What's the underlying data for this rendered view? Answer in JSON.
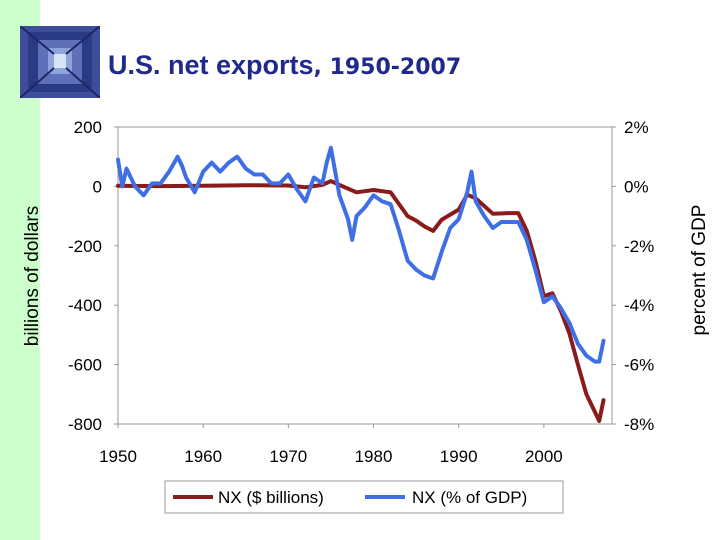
{
  "slide": {
    "title_main": "U.S. net exports",
    "title_rest": ", 1950-2007"
  },
  "colors": {
    "left_band": "#ccffcc",
    "title": "#1f2a8c",
    "nx_dollars": "#8b1a1a",
    "nx_percent": "#3f6fe6"
  },
  "icons": [
    "logo-icon"
  ],
  "chart_data": {
    "type": "line",
    "title": "U.S. net exports, 1950-2007",
    "xlabel": "",
    "ylabel_left": "billions of dollars",
    "ylabel_right": "percent of GDP",
    "xlim": [
      1950,
      2008
    ],
    "ylim_left": [
      -800,
      200
    ],
    "ylim_right": [
      -8,
      2
    ],
    "grid": false,
    "legend_position": "bottom",
    "x_ticks": [
      1950,
      1960,
      1970,
      1980,
      1990,
      2000
    ],
    "x_tick_labels": [
      "1950",
      "1960",
      "1970",
      "1980",
      "1990",
      "2000"
    ],
    "y_left_ticks": [
      200,
      0,
      -200,
      -400,
      -600,
      -800
    ],
    "y_left_tick_labels": [
      "200",
      "0",
      "-200",
      "-400",
      "-600",
      "-800"
    ],
    "y_right_ticks": [
      2,
      0,
      -2,
      -4,
      -6,
      -8
    ],
    "y_right_tick_labels": [
      "2%",
      "0%",
      "-2%",
      "-4%",
      "-6%",
      "-8%"
    ],
    "series": [
      {
        "name": "NX ($ billions)",
        "axis": "left",
        "color": "#8b1a1a",
        "x": [
          1950,
          1955,
          1960,
          1965,
          1970,
          1972,
          1974,
          1975,
          1976,
          1978,
          1980,
          1982,
          1984,
          1985,
          1986,
          1987,
          1988,
          1990,
          1991,
          1992,
          1994,
          1996,
          1997,
          1998,
          1999,
          2000,
          2001,
          2002,
          2003,
          2004,
          2005,
          2006,
          2006.5,
          2007
        ],
        "values": [
          2,
          1,
          2,
          4,
          3,
          -3,
          5,
          18,
          5,
          -20,
          -12,
          -20,
          -100,
          -115,
          -135,
          -150,
          -112,
          -78,
          -28,
          -40,
          -92,
          -90,
          -90,
          -150,
          -250,
          -370,
          -360,
          -420,
          -495,
          -600,
          -700,
          -760,
          -790,
          -720
        ]
      },
      {
        "name": "NX (% of GDP)",
        "axis": "right",
        "color": "#3f6fe6",
        "x": [
          1950,
          1950.5,
          1951,
          1952,
          1953,
          1954,
          1955,
          1956,
          1957,
          1957.5,
          1958,
          1959,
          1960,
          1961,
          1962,
          1963,
          1964,
          1965,
          1966,
          1967,
          1968,
          1969,
          1970,
          1971,
          1972,
          1973,
          1974,
          1974.5,
          1975,
          1975.5,
          1976,
          1977,
          1977.5,
          1978,
          1979,
          1980,
          1981,
          1982,
          1983,
          1984,
          1985,
          1986,
          1987,
          1988,
          1989,
          1990,
          1991,
          1991.5,
          1992,
          1993,
          1994,
          1995,
          1996,
          1997,
          1998,
          1999,
          2000,
          2001,
          2002,
          2003,
          2004,
          2005,
          2006,
          2006.5,
          2007
        ],
        "values": [
          0.9,
          0,
          0.6,
          0,
          -0.3,
          0.1,
          0.1,
          0.5,
          1.0,
          0.7,
          0.3,
          -0.2,
          0.5,
          0.8,
          0.5,
          0.8,
          1.0,
          0.6,
          0.4,
          0.4,
          0.1,
          0.1,
          0.4,
          -0.1,
          -0.5,
          0.3,
          0.1,
          0.8,
          1.3,
          0.5,
          -0.3,
          -1.1,
          -1.8,
          -1.0,
          -0.7,
          -0.3,
          -0.5,
          -0.6,
          -1.5,
          -2.5,
          -2.8,
          -3.0,
          -3.1,
          -2.2,
          -1.4,
          -1.1,
          -0.2,
          0.5,
          -0.5,
          -1.0,
          -1.4,
          -1.2,
          -1.2,
          -1.2,
          -1.8,
          -2.8,
          -3.9,
          -3.7,
          -4.1,
          -4.6,
          -5.3,
          -5.7,
          -5.9,
          -5.9,
          -5.2
        ]
      }
    ]
  }
}
